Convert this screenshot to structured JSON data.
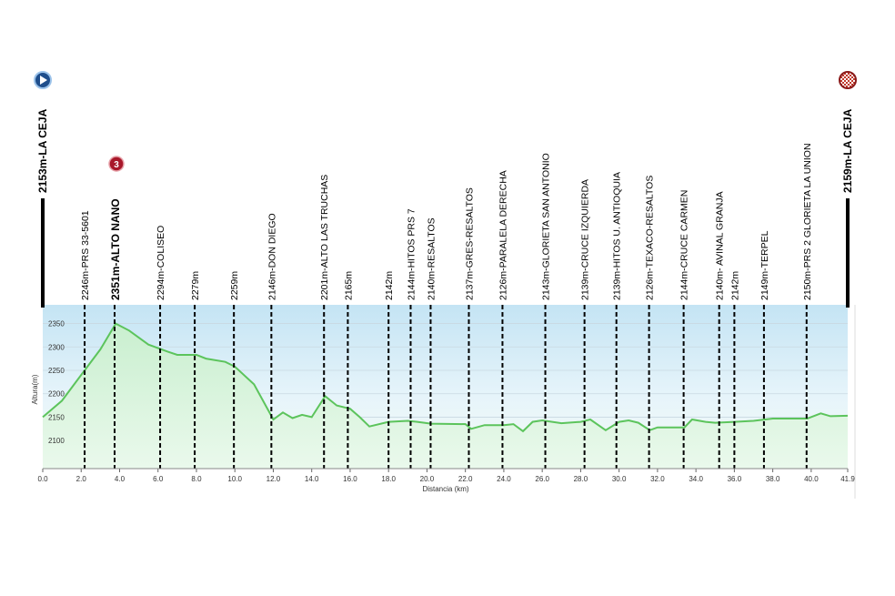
{
  "chart_data": {
    "type": "line",
    "x_label": "Distancia  (km)",
    "y_label": "Altura(m)",
    "x": [
      0,
      1,
      2,
      3,
      3.8,
      4.5,
      5.5,
      6.5,
      7,
      8,
      8.5,
      9.5,
      10,
      11,
      12,
      12.5,
      13,
      13.5,
      14,
      14.7,
      15.3,
      16,
      16.5,
      17,
      18,
      19,
      19.5,
      20.2,
      22,
      22.3,
      23,
      24,
      24.5,
      25,
      25.5,
      26,
      27,
      28,
      28.5,
      29.3,
      30,
      30.5,
      31,
      31.6,
      32,
      33.4,
      33.8,
      34.5,
      35,
      36,
      37,
      38,
      39.8,
      40.5,
      41,
      41.9
    ],
    "series": [
      {
        "name": "Altura",
        "color": "#5cc45c",
        "values": [
          2150,
          2185,
          2240,
          2295,
          2350,
          2335,
          2305,
          2290,
          2283,
          2283,
          2275,
          2268,
          2258,
          2220,
          2145,
          2160,
          2148,
          2155,
          2150,
          2195,
          2175,
          2168,
          2150,
          2130,
          2140,
          2142,
          2140,
          2136,
          2135,
          2125,
          2133,
          2133,
          2135,
          2120,
          2140,
          2143,
          2137,
          2140,
          2145,
          2122,
          2140,
          2143,
          2138,
          2122,
          2128,
          2128,
          2145,
          2140,
          2138,
          2140,
          2142,
          2147,
          2147,
          2158,
          2152,
          2153
        ]
      }
    ],
    "xlim": [
      0,
      41.9
    ],
    "ylim": [
      2040,
      2390
    ],
    "xticks": [
      {
        "value": 0,
        "label": "0.0"
      },
      {
        "value": 2,
        "label": "2.0"
      },
      {
        "value": 4,
        "label": "4.0"
      },
      {
        "value": 6,
        "label": "6.0"
      },
      {
        "value": 8,
        "label": "8.0"
      },
      {
        "value": 10,
        "label": "10.0"
      },
      {
        "value": 12,
        "label": "12.0"
      },
      {
        "value": 14,
        "label": "14.0"
      },
      {
        "value": 16,
        "label": "16.0"
      },
      {
        "value": 18,
        "label": "18.0"
      },
      {
        "value": 20,
        "label": "20.0"
      },
      {
        "value": 22,
        "label": "22.0"
      },
      {
        "value": 24,
        "label": "24.0"
      },
      {
        "value": 26,
        "label": "26.0"
      },
      {
        "value": 28,
        "label": "28.0"
      },
      {
        "value": 30,
        "label": "30.0"
      },
      {
        "value": 32,
        "label": "32.0"
      },
      {
        "value": 34,
        "label": "34.0"
      },
      {
        "value": 36,
        "label": "36.0"
      },
      {
        "value": 38,
        "label": "38.0"
      },
      {
        "value": 40,
        "label": "40.0"
      },
      {
        "value": 41.9,
        "label": "41.9"
      }
    ],
    "yticks": [
      2100,
      2150,
      2200,
      2250,
      2300,
      2350
    ],
    "grid": true,
    "waypoints": [
      {
        "label": "2153m-LA CEJA",
        "km": 0,
        "kind": "start"
      },
      {
        "label": "2246m-PRS 33-5601",
        "km": 2.18
      },
      {
        "label": "2351m-ALTO NANO",
        "km": 3.74,
        "category": "3"
      },
      {
        "label": "2294m-COLISEO",
        "km": 6.11
      },
      {
        "label": "2279m",
        "km": 7.91
      },
      {
        "label": "2259m",
        "km": 9.95
      },
      {
        "label": "2146m-DON DIEGO",
        "km": 11.9
      },
      {
        "label": "2201m-ALTO LAS TRUCHAS",
        "km": 14.64
      },
      {
        "label": "2165m",
        "km": 15.88
      },
      {
        "label": "2142m",
        "km": 18.0
      },
      {
        "label": "2144m-HITOS PRS 7",
        "km": 19.15
      },
      {
        "label": "2140m-RESALTOS",
        "km": 20.19
      },
      {
        "label": "2137m-GRES-RESALTOS",
        "km": 22.18
      },
      {
        "label": "2126m-PARALELA DERECHA",
        "km": 23.93
      },
      {
        "label": "2143m-GLORIETA SAN ANTONIO",
        "km": 26.16
      },
      {
        "label": "2139m-CRUCE  IZQUIERDA",
        "km": 28.2
      },
      {
        "label": "2139m-HITOS U. ANTIOQUIA",
        "km": 29.86
      },
      {
        "label": "2126m-TEXACO-RESALTOS",
        "km": 31.56
      },
      {
        "label": "2144m-CRUCE  CARMEN",
        "km": 33.36
      },
      {
        "label": "2140m- AVINAL  GRANJA",
        "km": 35.21
      },
      {
        "label": "2142m",
        "km": 36.0
      },
      {
        "label": "2149m-TERPEL",
        "km": 37.54
      },
      {
        "label": "2150m-PRS 2 GLORIETA LA UNION",
        "km": 39.76
      },
      {
        "label": "2159m-LA CEJA",
        "km": 41.9,
        "kind": "finish"
      }
    ]
  }
}
